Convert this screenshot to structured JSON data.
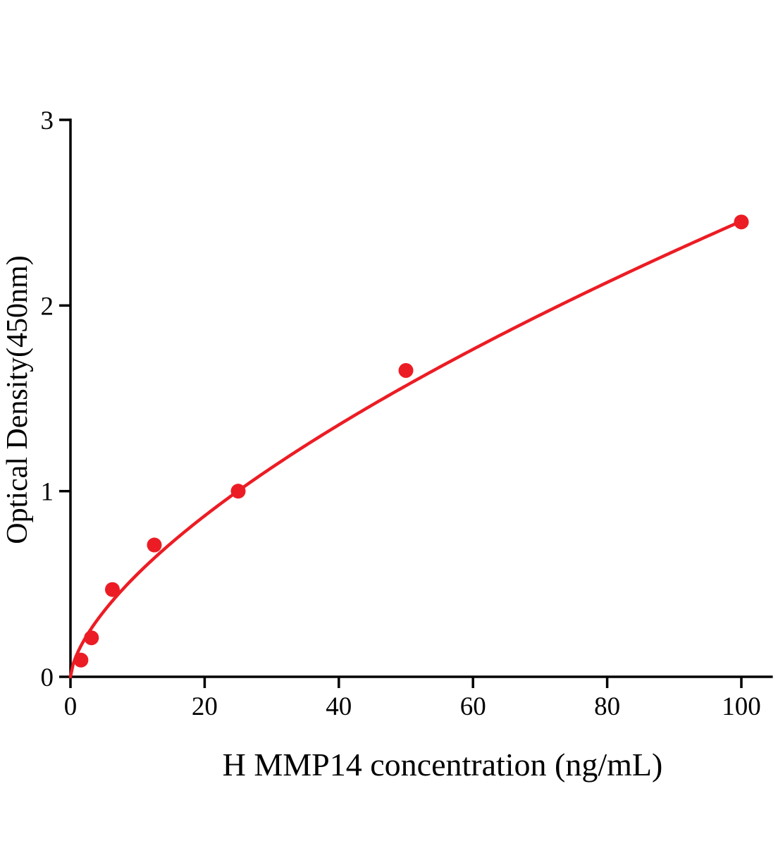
{
  "figure": {
    "background": "#ffffff"
  },
  "chart_data": {
    "type": "scatter",
    "title": "",
    "xlabel": "H MMP14 concentration (ng/mL)",
    "ylabel": "Optical Density(450nm)",
    "xlim": [
      0,
      104.5
    ],
    "ylim": [
      0,
      3
    ],
    "xticks": [
      0,
      20,
      40,
      60,
      80,
      100
    ],
    "yticks": [
      0,
      1,
      2,
      3
    ],
    "grid": false,
    "legend": null,
    "marker_color": "#ec1c24",
    "line_color": "#ec1c24",
    "axis_color": "#000000",
    "points": [
      {
        "x": 1.56,
        "y": 0.09
      },
      {
        "x": 3.125,
        "y": 0.21
      },
      {
        "x": 6.25,
        "y": 0.47
      },
      {
        "x": 12.5,
        "y": 0.71
      },
      {
        "x": 25,
        "y": 1.0
      },
      {
        "x": 50,
        "y": 1.65
      },
      {
        "x": 100,
        "y": 2.45
      }
    ],
    "curve_fit": {
      "type": "power",
      "a": 0.125,
      "b": 0.6465,
      "x_start": 0,
      "x_end": 100
    }
  }
}
